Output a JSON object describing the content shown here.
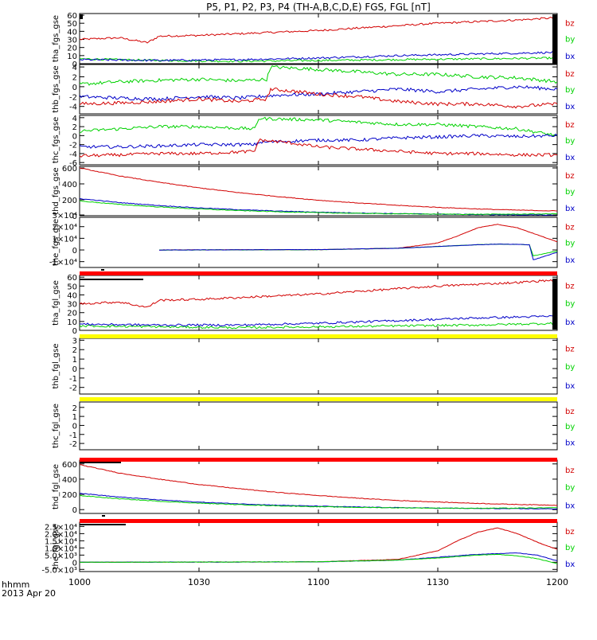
{
  "title": "P5, P1, P2, P3, P4 (TH-A,B,C,D,E) FGS, FGL [nT]",
  "x_axis": {
    "ticks": [
      "1000",
      "1030",
      "1100",
      "1130",
      "1200"
    ],
    "label_line1": "hhmm",
    "label_line2": "2013 Apr 20"
  },
  "legend_labels": [
    "bz",
    "by",
    "bx"
  ],
  "colors": {
    "bx": "#0000c8",
    "by": "#00d200",
    "bz": "#d20000",
    "bar_red": "#ff0000",
    "bar_yellow": "#ffff00",
    "axis": "#000000"
  },
  "chart_data": [
    {
      "type": "line",
      "ylabel": "tha_fgs_gse",
      "ylim": [
        0,
        62
      ],
      "yticks": [
        "0",
        "10",
        "20",
        "30",
        "40",
        "50",
        "60"
      ],
      "series": [
        {
          "name": "bz",
          "x": [
            0,
            10,
            17,
            20,
            30,
            40,
            50,
            60,
            70,
            80,
            90,
            100,
            110,
            120
          ],
          "values": [
            30,
            32,
            26,
            34,
            35,
            37,
            39,
            41,
            44,
            47,
            50,
            52,
            54,
            57
          ]
        },
        {
          "name": "by",
          "x": [
            0,
            20,
            40,
            60,
            80,
            100,
            120
          ],
          "values": [
            6,
            4,
            3,
            4,
            5,
            6,
            7
          ]
        },
        {
          "name": "bx",
          "x": [
            0,
            20,
            40,
            60,
            80,
            100,
            120
          ],
          "values": [
            5,
            4,
            5,
            7,
            10,
            12,
            14
          ]
        }
      ]
    },
    {
      "type": "line",
      "ylabel": "thb_fgs_gse",
      "ylim": [
        -5.5,
        4.5
      ],
      "yticks": [
        "-4",
        "-2",
        "0",
        "2",
        "4"
      ],
      "series": [
        {
          "name": "by",
          "x": [
            0,
            10,
            20,
            30,
            40,
            47,
            48,
            60,
            70,
            80,
            90,
            100,
            110,
            120
          ],
          "values": [
            0.5,
            1,
            1.3,
            1.5,
            1.2,
            1.5,
            4,
            3.5,
            3,
            2.5,
            2.5,
            2,
            1.8,
            1
          ]
        },
        {
          "name": "bx",
          "x": [
            0,
            10,
            20,
            30,
            40,
            50,
            60,
            70,
            80,
            90,
            100,
            110,
            120
          ],
          "values": [
            -2,
            -2.3,
            -2.5,
            -2,
            -2.3,
            -1.7,
            -1.5,
            -1,
            -0.5,
            -1,
            -0.5,
            0,
            -0.5
          ]
        },
        {
          "name": "bz",
          "x": [
            0,
            10,
            20,
            30,
            40,
            47,
            48,
            55,
            60,
            70,
            80,
            90,
            100,
            110,
            120
          ],
          "values": [
            -3.5,
            -3.3,
            -3,
            -2.5,
            -3,
            -2.5,
            -0.5,
            -1,
            -1.5,
            -2,
            -3,
            -3.5,
            -3.5,
            -4,
            -3.5
          ]
        }
      ]
    },
    {
      "type": "line",
      "ylabel": "thc_fgs_gse",
      "ylim": [
        -6.5,
        4.5
      ],
      "yticks": [
        "-6",
        "-4",
        "-2",
        "0",
        "2",
        "4"
      ],
      "series": [
        {
          "name": "by",
          "x": [
            0,
            10,
            20,
            30,
            44,
            45,
            60,
            70,
            80,
            90,
            100,
            110,
            120
          ],
          "values": [
            1,
            1.5,
            2,
            2,
            1.5,
            3.8,
            3.5,
            3,
            2.5,
            2.5,
            2,
            1.5,
            0
          ]
        },
        {
          "name": "bx",
          "x": [
            0,
            10,
            20,
            30,
            44,
            45,
            60,
            70,
            80,
            90,
            100,
            110,
            120
          ],
          "values": [
            -2.5,
            -2.5,
            -2.3,
            -2,
            -2,
            -1.5,
            -1,
            -1,
            -0.5,
            -0.3,
            0,
            -0.2,
            0
          ]
        },
        {
          "name": "bz",
          "x": [
            0,
            10,
            20,
            30,
            44,
            45,
            52,
            60,
            70,
            80,
            90,
            100,
            110,
            120
          ],
          "values": [
            -4.5,
            -4.3,
            -4,
            -4,
            -3.5,
            -1,
            -1.5,
            -2.5,
            -3,
            -3.5,
            -4,
            -4,
            -4.3,
            -4.3
          ]
        }
      ]
    },
    {
      "type": "line",
      "ylabel": "thd_fgs_gse",
      "ylim": [
        0,
        620
      ],
      "yticks": [
        "0",
        "200",
        "400",
        "600"
      ],
      "series": [
        {
          "name": "bz",
          "x": [
            0,
            10,
            20,
            30,
            40,
            50,
            60,
            70,
            80,
            90,
            100,
            110,
            120
          ],
          "values": [
            600,
            500,
            420,
            350,
            290,
            240,
            195,
            160,
            130,
            105,
            85,
            70,
            60
          ]
        },
        {
          "name": "bx",
          "x": [
            0,
            10,
            20,
            30,
            40,
            50,
            60,
            70,
            80,
            90,
            100,
            110,
            120
          ],
          "values": [
            215,
            165,
            128,
            98,
            76,
            58,
            45,
            34,
            26,
            20,
            15,
            11,
            8
          ]
        },
        {
          "name": "by",
          "x": [
            0,
            10,
            20,
            30,
            40,
            50,
            60,
            70,
            80,
            90,
            100,
            110,
            120
          ],
          "values": [
            185,
            142,
            110,
            85,
            65,
            50,
            38,
            30,
            24,
            20,
            18,
            20,
            24
          ]
        }
      ]
    },
    {
      "type": "line",
      "ylabel": "the_fgs_gse",
      "ylim": [
        -15000,
        28000
      ],
      "yticks": [
        "-1×10⁴",
        "0",
        "1×10⁴",
        "2×10⁴",
        "3×10⁴"
      ],
      "series": [
        {
          "name": "bz",
          "x": [
            20,
            60,
            80,
            90,
            95,
            100,
            105,
            110,
            115,
            120
          ],
          "values": [
            0,
            300,
            1500,
            6000,
            12000,
            19000,
            22000,
            19000,
            13000,
            7000
          ]
        },
        {
          "name": "by",
          "x": [
            20,
            60,
            80,
            90,
            100,
            105,
            110,
            113,
            114,
            120
          ],
          "values": [
            0,
            200,
            1500,
            3000,
            4500,
            5000,
            4800,
            4500,
            -5000,
            -1000
          ]
        },
        {
          "name": "bx",
          "x": [
            20,
            60,
            80,
            90,
            100,
            105,
            110,
            113,
            114,
            120
          ],
          "values": [
            0,
            300,
            1500,
            3000,
            4500,
            5000,
            4800,
            4500,
            -8500,
            -2000
          ]
        }
      ]
    },
    {
      "type": "line",
      "ylabel": "tha_fgl_gse",
      "ylim": [
        0,
        62
      ],
      "yticks": [
        "0",
        "10",
        "20",
        "30",
        "40",
        "50",
        "60"
      ],
      "series": [
        {
          "name": "bz",
          "x": [
            0,
            10,
            17,
            20,
            30,
            40,
            50,
            60,
            70,
            80,
            90,
            100,
            110,
            120
          ],
          "values": [
            30,
            32,
            26,
            34,
            35,
            37,
            39,
            41,
            44,
            47,
            50,
            52,
            54,
            57
          ]
        },
        {
          "name": "by",
          "x": [
            0,
            20,
            40,
            60,
            80,
            100,
            120
          ],
          "values": [
            5,
            4,
            3,
            4,
            5,
            6,
            8
          ]
        },
        {
          "name": "bx",
          "x": [
            0,
            20,
            40,
            60,
            80,
            100,
            120
          ],
          "values": [
            7,
            6,
            6,
            8,
            11,
            14,
            16
          ]
        }
      ]
    },
    {
      "type": "line",
      "ylabel": "thb_fgl_gse",
      "ylim": [
        -2.7,
        3.2
      ],
      "yticks": [
        "-2",
        "-1",
        "0",
        "1",
        "2",
        "3"
      ],
      "series": []
    },
    {
      "type": "line",
      "ylabel": "thc_fgl_gse",
      "ylim": [
        -2.7,
        2.6
      ],
      "yticks": [
        "-2",
        "-1",
        "0",
        "1",
        "2"
      ],
      "series": []
    },
    {
      "type": "line",
      "ylabel": "thd_fgl_gse",
      "ylim": [
        -50,
        650
      ],
      "yticks": [
        "0",
        "200",
        "400",
        "600"
      ],
      "series": [
        {
          "name": "bz",
          "x": [
            0,
            10,
            20,
            30,
            40,
            50,
            60,
            70,
            80,
            90,
            100,
            110,
            120
          ],
          "values": [
            590,
            480,
            400,
            330,
            275,
            225,
            185,
            150,
            120,
            100,
            82,
            68,
            58
          ]
        },
        {
          "name": "bx",
          "x": [
            0,
            10,
            20,
            30,
            40,
            50,
            60,
            70,
            80,
            90,
            100,
            110,
            120
          ],
          "values": [
            215,
            165,
            128,
            98,
            76,
            58,
            45,
            34,
            26,
            20,
            15,
            12,
            10
          ]
        },
        {
          "name": "by",
          "x": [
            0,
            10,
            20,
            30,
            40,
            50,
            60,
            70,
            80,
            90,
            100,
            110,
            120
          ],
          "values": [
            185,
            142,
            110,
            85,
            65,
            50,
            38,
            30,
            24,
            20,
            18,
            20,
            24
          ]
        }
      ]
    },
    {
      "type": "line",
      "ylabel": "the_fgl_gse",
      "ylim": [
        -6500,
        28000
      ],
      "yticks": [
        "-5.0×10³",
        "0",
        "5.0×10³",
        "1.0×10⁴",
        "1.5×10⁴",
        "2.0×10⁴",
        "2.5×10⁴"
      ],
      "series": [
        {
          "name": "bz",
          "x": [
            0,
            60,
            80,
            90,
            95,
            100,
            105,
            110,
            115,
            120
          ],
          "values": [
            0,
            300,
            2000,
            8000,
            15000,
            21000,
            24000,
            20000,
            14000,
            9000
          ]
        },
        {
          "name": "bx",
          "x": [
            0,
            60,
            80,
            90,
            100,
            105,
            110,
            115,
            120
          ],
          "values": [
            0,
            300,
            1500,
            3500,
            5500,
            6000,
            6500,
            5000,
            1000
          ]
        },
        {
          "name": "by",
          "x": [
            0,
            60,
            80,
            90,
            100,
            105,
            110,
            115,
            120
          ],
          "values": [
            0,
            300,
            1500,
            3000,
            5000,
            5500,
            4500,
            2500,
            -1000
          ]
        }
      ]
    }
  ]
}
